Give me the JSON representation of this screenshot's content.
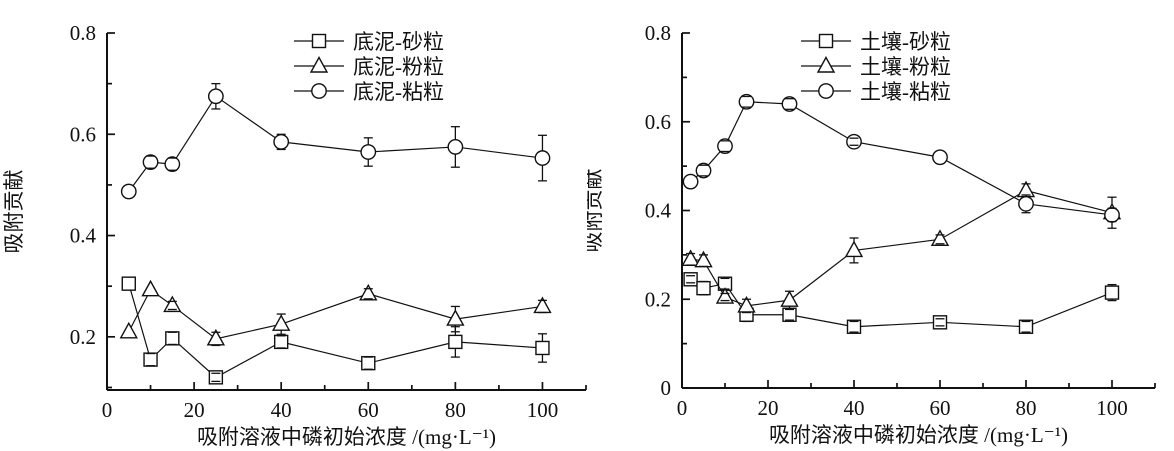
{
  "page": {
    "background": "#ffffff",
    "foreground": "#111111"
  },
  "chart_data": [
    {
      "type": "line",
      "name": "sediment",
      "title": "",
      "xlabel": "吸附溶液中磷初始浓度 /(mg·L⁻¹)",
      "ylabel": "吸附贡献",
      "xlim": [
        0,
        110
      ],
      "ylim": [
        0.095,
        0.8
      ],
      "grid": false,
      "legend_position": "top-center-inside",
      "xticks": [
        0,
        20,
        40,
        60,
        80,
        100
      ],
      "xticks_minor": [
        10,
        30,
        50,
        70,
        90,
        110
      ],
      "yticks": [
        {
          "v": 0.2,
          "label": "0.2"
        },
        {
          "v": 0.4,
          "label": "0.4"
        },
        {
          "v": 0.6,
          "label": "0.6"
        },
        {
          "v": 0.8,
          "label": "0.8"
        }
      ],
      "yticks_minor": [
        0.1,
        0.3,
        0.5,
        0.7
      ],
      "x": [
        5,
        10,
        15,
        25,
        40,
        60,
        80,
        100
      ],
      "series": [
        {
          "name": "底泥-砂粒",
          "marker": "square",
          "values": [
            0.305,
            0.155,
            0.197,
            0.12,
            0.19,
            0.148,
            0.19,
            0.178
          ],
          "errors": [
            0,
            0.012,
            0.012,
            0.008,
            0.012,
            0.012,
            0.03,
            0.028
          ]
        },
        {
          "name": "底泥-粉粒",
          "marker": "triangle",
          "values": [
            0.21,
            0.293,
            0.262,
            0.196,
            0.225,
            0.285,
            0.235,
            0.26
          ],
          "errors": [
            0,
            0,
            0.008,
            0.013,
            0.02,
            0.01,
            0.025,
            0.012
          ]
        },
        {
          "name": "底泥-粘粒",
          "marker": "circle",
          "values": [
            0.487,
            0.545,
            0.541,
            0.675,
            0.585,
            0.565,
            0.575,
            0.553
          ],
          "errors": [
            0,
            0.012,
            0.012,
            0.025,
            0.015,
            0.028,
            0.04,
            0.045
          ]
        }
      ]
    },
    {
      "type": "line",
      "name": "soil",
      "title": "",
      "xlabel": "吸附溶液中磷初始浓度 /(mg·L⁻¹)",
      "ylabel": "吸附贡献",
      "xlim": [
        0,
        110
      ],
      "ylim": [
        0,
        0.8
      ],
      "grid": false,
      "legend_position": "top-center-inside",
      "xticks": [
        0,
        20,
        40,
        60,
        80,
        100
      ],
      "xticks_minor": [
        10,
        30,
        50,
        70,
        90,
        110
      ],
      "yticks": [
        {
          "v": 0,
          "label": "0"
        },
        {
          "v": 0.2,
          "label": "0.2"
        },
        {
          "v": 0.4,
          "label": "0.4"
        },
        {
          "v": 0.6,
          "label": "0.6"
        },
        {
          "v": 0.8,
          "label": "0.8"
        }
      ],
      "yticks_minor": [
        0.1,
        0.3,
        0.5,
        0.7
      ],
      "x": [
        2,
        5,
        10,
        15,
        25,
        40,
        60,
        80,
        100
      ],
      "series": [
        {
          "name": "土壤-砂粒",
          "marker": "square",
          "values": [
            0.245,
            0.225,
            0.235,
            0.165,
            0.165,
            0.138,
            0.148,
            0.138,
            0.215
          ],
          "errors": [
            0.008,
            0.015,
            0.012,
            0.015,
            0.012,
            0.012,
            0.008,
            0.012,
            0.018
          ]
        },
        {
          "name": "土壤-粉粒",
          "marker": "triangle",
          "values": [
            0.29,
            0.287,
            0.205,
            0.185,
            0.198,
            0.31,
            0.335,
            0.445,
            0.395
          ],
          "errors": [
            0.013,
            0.013,
            0.008,
            0.015,
            0.02,
            0.028,
            0.01,
            0.015,
            0.035
          ]
        },
        {
          "name": "土壤-粘粒",
          "marker": "circle",
          "values": [
            0.465,
            0.49,
            0.545,
            0.645,
            0.64,
            0.555,
            0.52,
            0.415,
            0.39
          ],
          "errors": [
            0,
            0.012,
            0.012,
            0.012,
            0.012,
            0.008,
            0,
            0.02,
            0.015
          ]
        }
      ]
    }
  ]
}
